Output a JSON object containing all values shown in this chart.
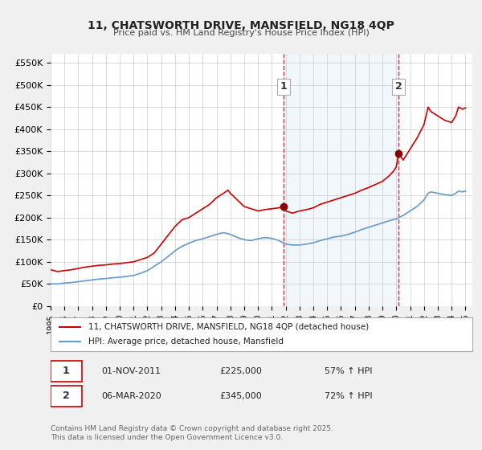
{
  "title": "11, CHATSWORTH DRIVE, MANSFIELD, NG18 4QP",
  "subtitle": "Price paid vs. HM Land Registry's House Price Index (HPI)",
  "background_color": "#f0f0f0",
  "plot_bg_color": "#ffffff",
  "grid_color": "#cccccc",
  "red_line_color": "#cc0000",
  "blue_line_color": "#6699cc",
  "annotation_bg": "#ddeeff",
  "vline_color": "#cc0000",
  "marker1_date": 2011.833,
  "marker2_date": 2020.167,
  "marker1_red_y": 225000,
  "marker1_blue_y": 143000,
  "marker2_red_y": 345000,
  "marker2_blue_y": 200000,
  "legend_label_red": "11, CHATSWORTH DRIVE, MANSFIELD, NG18 4QP (detached house)",
  "legend_label_blue": "HPI: Average price, detached house, Mansfield",
  "annotation1_num": "1",
  "annotation1_date": "01-NOV-2011",
  "annotation1_price": "£225,000",
  "annotation1_hpi": "57% ↑ HPI",
  "annotation2_num": "2",
  "annotation2_date": "06-MAR-2020",
  "annotation2_price": "£345,000",
  "annotation2_hpi": "72% ↑ HPI",
  "footer": "Contains HM Land Registry data © Crown copyright and database right 2025.\nThis data is licensed under the Open Government Licence v3.0.",
  "ylim": [
    0,
    570000
  ],
  "xlim_start": 1995.0,
  "xlim_end": 2025.5
}
